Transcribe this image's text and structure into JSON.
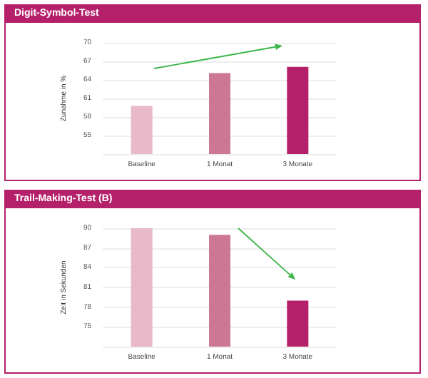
{
  "chart_data": [
    {
      "type": "bar",
      "title": "Digit-Symbol-Test",
      "ylabel": "Zunahme in %",
      "categories": [
        "Baseline",
        "1 Monat",
        "3 Monate"
      ],
      "values": [
        59.8,
        65.1,
        66.1
      ],
      "colors": [
        "#e8b9c8",
        "#cc7793",
        "#b5206a"
      ],
      "ylim": [
        52,
        70
      ],
      "yticks": [
        {
          "value": 52,
          "label": null
        },
        55,
        58,
        61,
        64,
        67,
        70
      ],
      "grid": "y"
    },
    {
      "type": "bar",
      "title": "Trail-Making-Test (B)",
      "ylabel": "Zeit in Sekunden",
      "categories": [
        "Baseline",
        "1 Monat",
        "3 Monate"
      ],
      "values": [
        90,
        89,
        79
      ],
      "colors": [
        "#e8b9c8",
        "#cc7793",
        "#b5206a"
      ],
      "ylim": [
        72,
        90
      ],
      "yticks": [
        {
          "value": 72,
          "label": null
        },
        75,
        78,
        81,
        84,
        87,
        90
      ],
      "grid": "y"
    }
  ]
}
